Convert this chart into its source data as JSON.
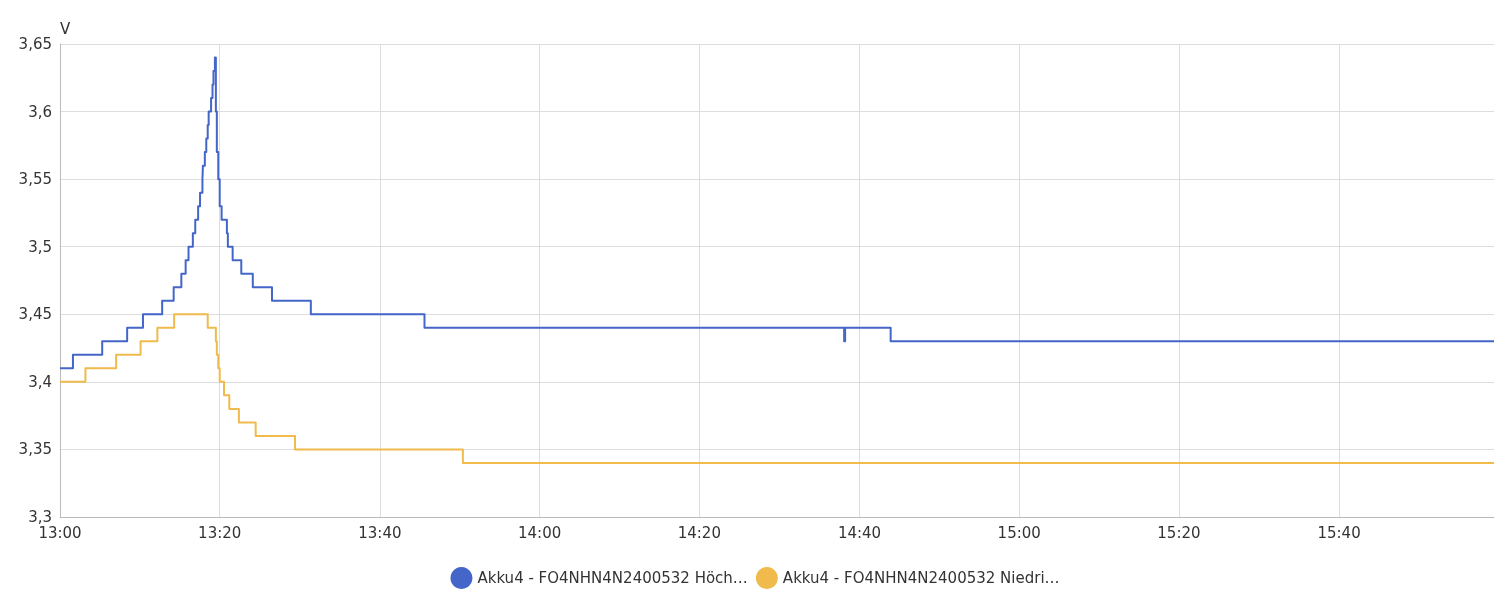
{
  "chart_data": {
    "type": "step",
    "ylabel": "V",
    "xlim": [
      13,
      15.99
    ],
    "ylim": [
      3.3,
      3.65
    ],
    "xticks": [
      {
        "value": 13,
        "label": "13:00"
      },
      {
        "value": 13.333,
        "label": "13:20"
      },
      {
        "value": 13.667,
        "label": "13:40"
      },
      {
        "value": 14,
        "label": "14:00"
      },
      {
        "value": 14.333,
        "label": "14:20"
      },
      {
        "value": 14.667,
        "label": "14:40"
      },
      {
        "value": 15,
        "label": "15:00"
      },
      {
        "value": 15.333,
        "label": "15:20"
      },
      {
        "value": 15.667,
        "label": "15:40"
      }
    ],
    "yticks": [
      {
        "value": 3.3,
        "label": "3,3"
      },
      {
        "value": 3.35,
        "label": "3,35"
      },
      {
        "value": 3.4,
        "label": "3,4"
      },
      {
        "value": 3.45,
        "label": "3,45"
      },
      {
        "value": 3.5,
        "label": "3,5"
      },
      {
        "value": 3.55,
        "label": "3,55"
      },
      {
        "value": 3.6,
        "label": "3,6"
      },
      {
        "value": 3.65,
        "label": "3,65"
      }
    ],
    "grid": true,
    "legend": "bottom",
    "marker": "none",
    "line_style": "solid",
    "series": [
      {
        "name": "Akku4 - FO4NHN4N2400532 Höch…",
        "color": "#4466c8",
        "x": [
          13,
          13.027,
          13.088,
          13.14,
          13.173,
          13.213,
          13.237,
          13.253,
          13.262,
          13.268,
          13.277,
          13.282,
          13.288,
          13.292,
          13.297,
          13.298,
          13.302,
          13.305,
          13.308,
          13.31,
          13.315,
          13.318,
          13.32,
          13.323,
          13.325,
          13.327,
          13.33,
          13.333,
          13.337,
          13.348,
          13.35,
          13.36,
          13.378,
          13.402,
          13.442,
          13.523,
          13.76,
          14.635,
          14.637,
          14.732,
          15.99
        ],
        "values": [
          3.41,
          3.42,
          3.43,
          3.44,
          3.45,
          3.46,
          3.47,
          3.48,
          3.49,
          3.5,
          3.51,
          3.52,
          3.53,
          3.54,
          3.55,
          3.56,
          3.57,
          3.58,
          3.59,
          3.6,
          3.61,
          3.62,
          3.63,
          3.64,
          3.6,
          3.57,
          3.55,
          3.53,
          3.52,
          3.51,
          3.5,
          3.49,
          3.48,
          3.47,
          3.46,
          3.45,
          3.44,
          3.43,
          3.44,
          3.43,
          3.43
        ]
      },
      {
        "name": "Akku4 - FO4NHN4N2400532 Niedri…",
        "color": "#f0bb4c",
        "x": [
          13,
          13.053,
          13.117,
          13.168,
          13.203,
          13.238,
          13.308,
          13.325,
          13.327,
          13.33,
          13.333,
          13.342,
          13.353,
          13.373,
          13.408,
          13.49,
          13.84,
          15.99
        ],
        "values": [
          3.4,
          3.41,
          3.42,
          3.43,
          3.44,
          3.45,
          3.44,
          3.43,
          3.42,
          3.41,
          3.4,
          3.39,
          3.38,
          3.37,
          3.36,
          3.35,
          3.34,
          3.34
        ]
      }
    ]
  }
}
